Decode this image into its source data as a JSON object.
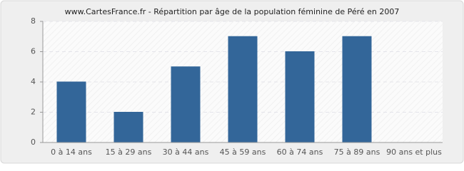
{
  "chart_data": {
    "type": "bar",
    "title": "www.CartesFrance.fr - Répartition par âge de la population féminine de Péré en 2007",
    "categories": [
      "0 à 14 ans",
      "15 à 29 ans",
      "30 à 44 ans",
      "45 à 59 ans",
      "60 à 74 ans",
      "75 à 89 ans",
      "90 ans et plus"
    ],
    "values": [
      4,
      2,
      5,
      7,
      6,
      7,
      0
    ],
    "color": "#336699",
    "ylim": [
      0,
      8
    ],
    "yticks": [
      0,
      2,
      4,
      6,
      8
    ],
    "grid": true
  }
}
